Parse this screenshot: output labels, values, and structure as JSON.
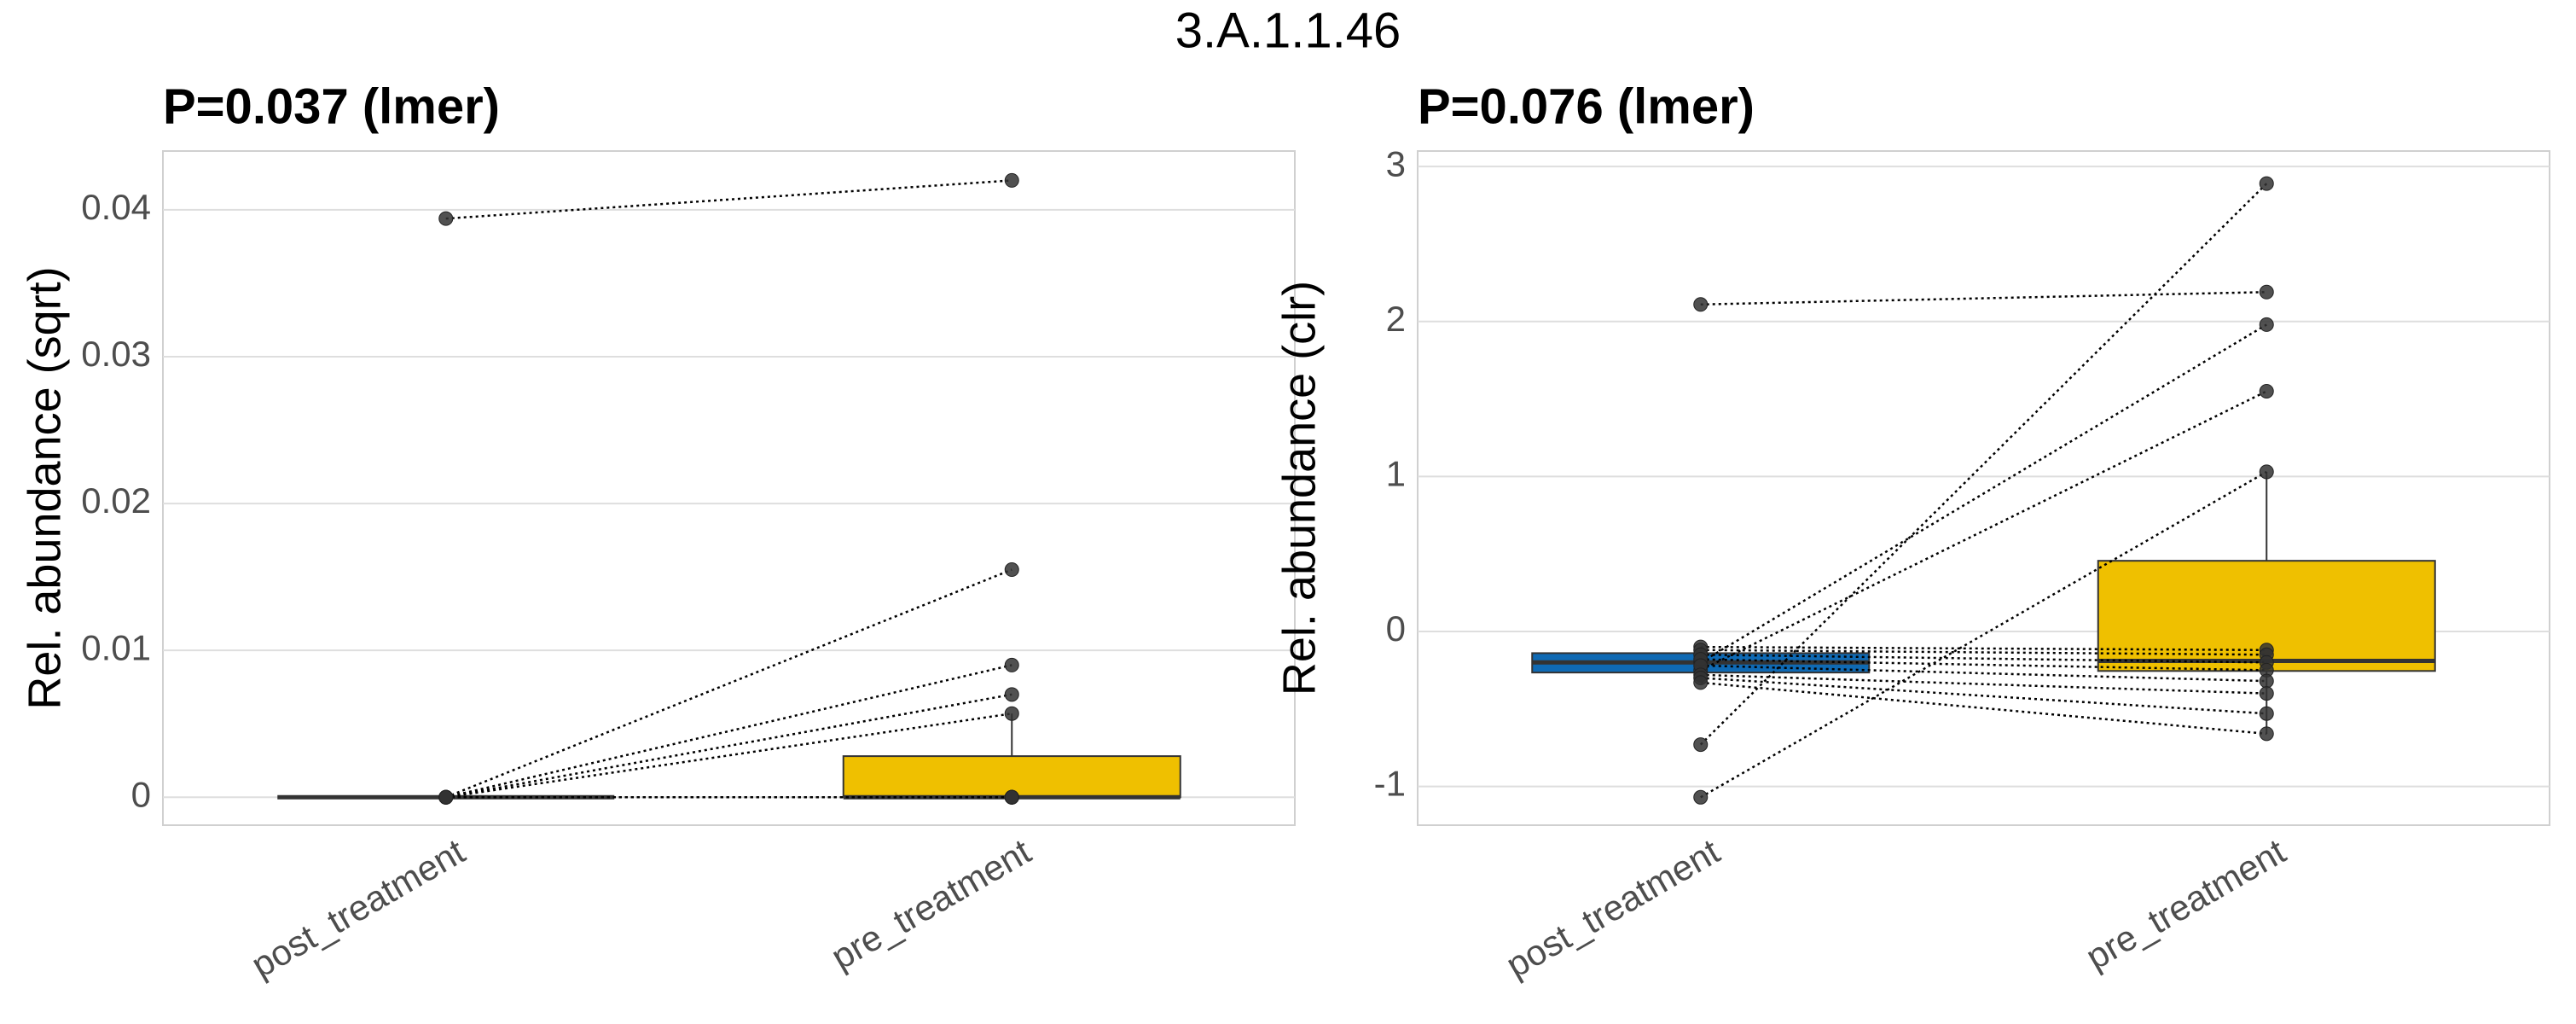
{
  "chart_data": {
    "title": "3.A.1.1.46",
    "panels": [
      {
        "type": "box",
        "title": "P=0.037 (lmer)",
        "ylabel": "Rel. abundance (sqrt)",
        "categories": [
          "post_treatment",
          "pre_treatment"
        ],
        "colors": [
          "#0F6AB4",
          "#EFC000"
        ],
        "boxes": [
          {
            "q1": 0,
            "median": 0,
            "q3": 0,
            "whisker_low": 0,
            "whisker_high": 0
          },
          {
            "q1": 0,
            "median": 0,
            "q3": 0.0028,
            "whisker_low": 0,
            "whisker_high": 0.0057
          }
        ],
        "pairs": [
          [
            0.0394,
            0.042
          ],
          [
            0,
            0.0155
          ],
          [
            0,
            0.009
          ],
          [
            0,
            0.007
          ],
          [
            0,
            0.0057
          ],
          [
            0,
            0
          ],
          [
            0,
            0
          ],
          [
            0,
            0
          ],
          [
            0,
            0
          ],
          [
            0,
            0
          ],
          [
            0,
            0
          ],
          [
            0,
            0
          ],
          [
            0,
            0
          ]
        ],
        "ylim": [
          -0.0019,
          0.044
        ],
        "yticks": [
          0,
          0.01,
          0.02,
          0.03,
          0.04
        ],
        "grid": true
      },
      {
        "type": "box",
        "title": "P=0.076 (lmer)",
        "ylabel": "Rel. abundance (clr)",
        "categories": [
          "post_treatment",
          "pre_treatment"
        ],
        "colors": [
          "#0F6AB4",
          "#EFC000"
        ],
        "boxes": [
          {
            "q1": -0.265,
            "median": -0.2,
            "q3": -0.14,
            "whisker_low": -0.33,
            "whisker_high": -0.1
          },
          {
            "q1": -0.255,
            "median": -0.19,
            "q3": 0.456,
            "whisker_low": -0.66,
            "whisker_high": 1.03
          }
        ],
        "pairs": [
          [
            2.11,
            2.19
          ],
          [
            -0.73,
            2.89
          ],
          [
            -1.07,
            1.03
          ],
          [
            -0.2,
            1.98
          ],
          [
            -0.25,
            1.55
          ],
          [
            -0.1,
            -0.12
          ],
          [
            -0.12,
            -0.15
          ],
          [
            -0.15,
            -0.2
          ],
          [
            -0.18,
            -0.25
          ],
          [
            -0.22,
            -0.32
          ],
          [
            -0.28,
            -0.4
          ],
          [
            -0.3,
            -0.53
          ],
          [
            -0.33,
            -0.66
          ]
        ],
        "ylim": [
          -1.25,
          3.1
        ],
        "yticks": [
          -1,
          0,
          1,
          2,
          3
        ],
        "grid": true
      }
    ]
  }
}
